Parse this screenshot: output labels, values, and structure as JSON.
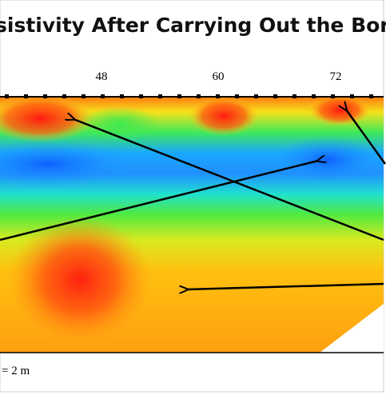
{
  "title": "sistivity After Carrying Out the Bore",
  "axis": {
    "ticks": [
      "48",
      "60",
      "72"
    ]
  },
  "scale_label": "= 2 m"
}
